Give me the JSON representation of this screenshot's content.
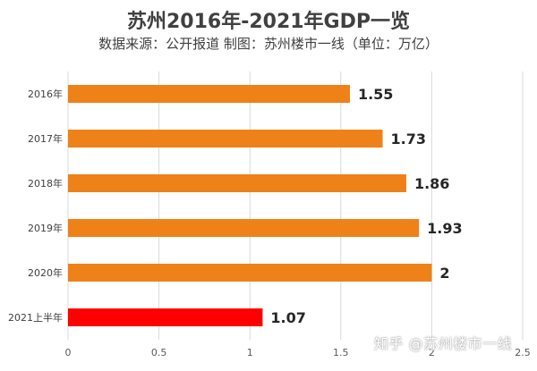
{
  "chart_data": {
    "type": "bar",
    "orientation": "horizontal",
    "title": "苏州2016年-2021年GDP一览",
    "subtitle": "数据来源：公开报道 制图：苏州楼市一线（单位：万亿）",
    "categories": [
      "2016年",
      "2017年",
      "2018年",
      "2019年",
      "2020年",
      "2021上半年"
    ],
    "values": [
      1.55,
      1.73,
      1.86,
      1.93,
      2,
      1.07
    ],
    "value_labels": [
      "1.55",
      "1.73",
      "1.86",
      "1.93",
      "2",
      "1.07"
    ],
    "bar_colors": [
      "#ee8118",
      "#ee8118",
      "#ee8118",
      "#ee8118",
      "#ee8118",
      "#ff0000"
    ],
    "xlim": [
      0,
      2.5
    ],
    "x_ticks": [
      0,
      0.5,
      1,
      1.5,
      2,
      2.5
    ],
    "x_tick_labels": [
      "0",
      "0.5",
      "1",
      "1.5",
      "2",
      "2.5"
    ],
    "grid": "vertical",
    "legend": "none"
  },
  "watermark": "知乎 @苏州楼市一线"
}
